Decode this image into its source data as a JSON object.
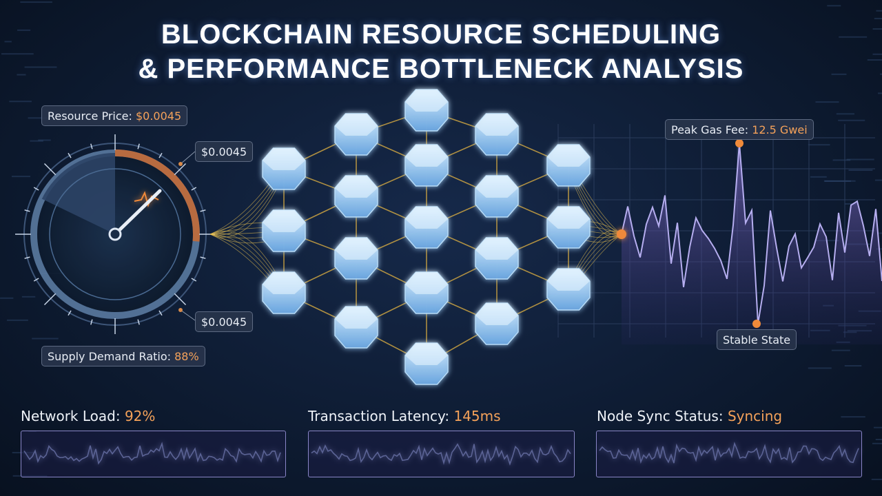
{
  "header": {
    "title_lines": [
      "BLOCKCHAIN RESOURCE SCHEDULING",
      "& PERFORMANCE BOTTLENECK ANALYSIS"
    ]
  },
  "gauge": {
    "price": {
      "label": "Resource Price:",
      "value": "$0.0045"
    },
    "callouts": [
      "$0.0045",
      "$0.0045"
    ],
    "ratio": {
      "label": "Supply Demand Ratio:",
      "value": "88%"
    }
  },
  "waveform": {
    "peak": {
      "label": "Peak Gas Fee:",
      "value": "12.5 Gwei"
    },
    "stable": "Stable State"
  },
  "metrics": [
    {
      "label": "Network Load:",
      "value": "92%"
    },
    {
      "label": "Transaction Latency:",
      "value": "145ms"
    },
    {
      "label": "Node Sync Status:",
      "value": "Syncing"
    }
  ]
}
